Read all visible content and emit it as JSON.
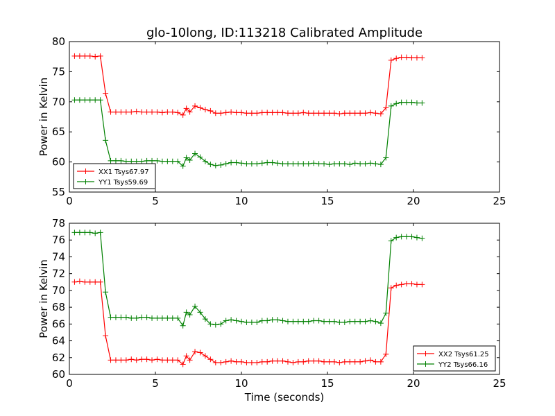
{
  "figure": {
    "title": "glo-10long, ID:113218 Calibrated Amplitude",
    "xlabel": "Time (seconds)"
  },
  "chart_data": [
    {
      "type": "line",
      "title": "glo-10long, ID:113218 Calibrated Amplitude",
      "xlabel": "",
      "ylabel": "Power in Kelvin",
      "xlim": [
        0,
        25
      ],
      "ylim": [
        55,
        80
      ],
      "xticks": [
        0,
        5,
        10,
        15,
        20,
        25
      ],
      "yticks": [
        55,
        60,
        65,
        70,
        75,
        80
      ],
      "grid": false,
      "legend_position": "bottom-left",
      "x": [
        0.3,
        0.6,
        0.9,
        1.2,
        1.5,
        1.8,
        2.1,
        2.4,
        2.7,
        3.0,
        3.3,
        3.6,
        3.9,
        4.2,
        4.5,
        4.8,
        5.1,
        5.4,
        5.7,
        6.0,
        6.3,
        6.6,
        6.8,
        7.0,
        7.3,
        7.6,
        7.9,
        8.2,
        8.5,
        8.8,
        9.1,
        9.4,
        9.7,
        10.0,
        10.3,
        10.6,
        10.9,
        11.2,
        11.5,
        11.8,
        12.1,
        12.4,
        12.7,
        13.0,
        13.3,
        13.6,
        13.9,
        14.2,
        14.5,
        14.8,
        15.1,
        15.4,
        15.7,
        16.0,
        16.3,
        16.6,
        16.9,
        17.2,
        17.5,
        17.8,
        18.1,
        18.4,
        18.7,
        19.0,
        19.3,
        19.6,
        19.9,
        20.2,
        20.5
      ],
      "series": [
        {
          "name": "XX1 Tsys67.97",
          "color": "#ff0000",
          "values": [
            77.6,
            77.6,
            77.6,
            77.6,
            77.5,
            77.6,
            71.4,
            68.3,
            68.3,
            68.3,
            68.3,
            68.3,
            68.4,
            68.3,
            68.3,
            68.3,
            68.3,
            68.2,
            68.3,
            68.3,
            68.2,
            67.8,
            68.9,
            68.3,
            69.3,
            69.0,
            68.7,
            68.5,
            68.1,
            68.1,
            68.2,
            68.3,
            68.2,
            68.2,
            68.1,
            68.1,
            68.1,
            68.2,
            68.2,
            68.2,
            68.2,
            68.2,
            68.1,
            68.1,
            68.1,
            68.2,
            68.1,
            68.1,
            68.1,
            68.1,
            68.1,
            68.1,
            68.0,
            68.1,
            68.1,
            68.1,
            68.1,
            68.1,
            68.2,
            68.1,
            68.0,
            69.0,
            76.9,
            77.2,
            77.4,
            77.4,
            77.3,
            77.3,
            77.3
          ]
        },
        {
          "name": "YY1 Tsys59.69",
          "color": "#008000",
          "values": [
            70.3,
            70.3,
            70.3,
            70.3,
            70.3,
            70.3,
            63.6,
            60.2,
            60.2,
            60.2,
            60.1,
            60.1,
            60.1,
            60.1,
            60.2,
            60.2,
            60.2,
            60.1,
            60.1,
            60.1,
            60.1,
            59.3,
            60.7,
            60.3,
            61.4,
            60.8,
            60.1,
            59.6,
            59.4,
            59.5,
            59.7,
            59.9,
            59.9,
            59.8,
            59.7,
            59.7,
            59.7,
            59.8,
            59.9,
            59.9,
            59.8,
            59.7,
            59.7,
            59.7,
            59.7,
            59.7,
            59.7,
            59.8,
            59.7,
            59.7,
            59.6,
            59.7,
            59.7,
            59.7,
            59.6,
            59.8,
            59.7,
            59.7,
            59.8,
            59.7,
            59.6,
            60.7,
            69.3,
            69.7,
            69.9,
            69.9,
            69.9,
            69.8,
            69.8
          ]
        }
      ]
    },
    {
      "type": "line",
      "title": "",
      "xlabel": "Time (seconds)",
      "ylabel": "Power in Kelvin",
      "xlim": [
        0,
        25
      ],
      "ylim": [
        60,
        78
      ],
      "xticks": [
        0,
        5,
        10,
        15,
        20,
        25
      ],
      "yticks": [
        60,
        62,
        64,
        66,
        68,
        70,
        72,
        74,
        76,
        78
      ],
      "grid": false,
      "legend_position": "bottom-right",
      "x": [
        0.3,
        0.6,
        0.9,
        1.2,
        1.5,
        1.8,
        2.1,
        2.4,
        2.7,
        3.0,
        3.3,
        3.6,
        3.9,
        4.2,
        4.5,
        4.8,
        5.1,
        5.4,
        5.7,
        6.0,
        6.3,
        6.6,
        6.8,
        7.0,
        7.3,
        7.6,
        7.9,
        8.2,
        8.5,
        8.8,
        9.1,
        9.4,
        9.7,
        10.0,
        10.3,
        10.6,
        10.9,
        11.2,
        11.5,
        11.8,
        12.1,
        12.4,
        12.7,
        13.0,
        13.3,
        13.6,
        13.9,
        14.2,
        14.5,
        14.8,
        15.1,
        15.4,
        15.7,
        16.0,
        16.3,
        16.6,
        16.9,
        17.2,
        17.5,
        17.8,
        18.1,
        18.4,
        18.7,
        19.0,
        19.3,
        19.6,
        19.9,
        20.2,
        20.5
      ],
      "series": [
        {
          "name": "XX2 Tsys61.25",
          "color": "#ff0000",
          "values": [
            71.0,
            71.1,
            71.0,
            71.0,
            71.0,
            71.0,
            64.6,
            61.7,
            61.7,
            61.7,
            61.7,
            61.8,
            61.7,
            61.8,
            61.8,
            61.7,
            61.8,
            61.7,
            61.7,
            61.7,
            61.7,
            61.2,
            62.2,
            61.7,
            62.7,
            62.6,
            62.2,
            61.8,
            61.4,
            61.4,
            61.5,
            61.6,
            61.5,
            61.5,
            61.4,
            61.4,
            61.4,
            61.5,
            61.5,
            61.6,
            61.6,
            61.6,
            61.5,
            61.4,
            61.5,
            61.5,
            61.6,
            61.6,
            61.6,
            61.5,
            61.5,
            61.5,
            61.4,
            61.5,
            61.5,
            61.5,
            61.5,
            61.6,
            61.7,
            61.5,
            61.5,
            62.4,
            70.3,
            70.6,
            70.7,
            70.8,
            70.8,
            70.7,
            70.7
          ]
        },
        {
          "name": "YY2 Tsys66.16",
          "color": "#008000",
          "values": [
            76.9,
            76.9,
            76.9,
            76.9,
            76.8,
            76.9,
            69.8,
            66.8,
            66.8,
            66.8,
            66.8,
            66.7,
            66.7,
            66.8,
            66.8,
            66.7,
            66.7,
            66.7,
            66.7,
            66.7,
            66.7,
            65.8,
            67.4,
            67.1,
            68.1,
            67.4,
            66.6,
            66.0,
            65.9,
            66.0,
            66.4,
            66.5,
            66.4,
            66.3,
            66.2,
            66.2,
            66.2,
            66.4,
            66.4,
            66.5,
            66.5,
            66.4,
            66.3,
            66.3,
            66.3,
            66.3,
            66.3,
            66.4,
            66.4,
            66.3,
            66.3,
            66.3,
            66.2,
            66.2,
            66.3,
            66.3,
            66.3,
            66.3,
            66.4,
            66.3,
            66.1,
            67.3,
            75.9,
            76.3,
            76.4,
            76.4,
            76.4,
            76.3,
            76.2
          ]
        }
      ]
    }
  ]
}
